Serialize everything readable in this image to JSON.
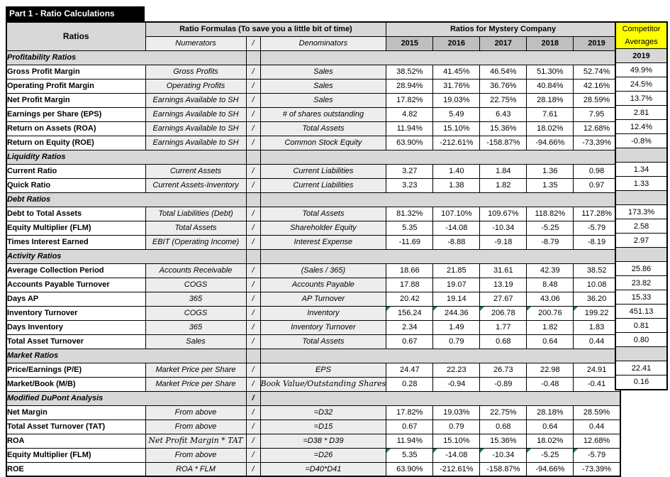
{
  "title": "Part 1 - Ratio Calculations",
  "header": {
    "ratios_label": "Ratios",
    "formulas_label": "Ratio Formulas (To save you a little bit of time)",
    "numerators_label": "Numerators",
    "slash": "/",
    "denominators_label": "Denominators",
    "company_label": "Ratios for Mystery Company",
    "years": [
      "2015",
      "2016",
      "2017",
      "2018",
      "2019"
    ]
  },
  "competitor": {
    "title_line1": "Competitor",
    "title_line2": "Averages",
    "year": "2019"
  },
  "colors": {
    "accent_green": "#00A551",
    "header_gray": "#D8D8D8",
    "year_gray": "#BFBFBF",
    "formula_bg": "#EDEDED",
    "highlight_yellow": "#FFFF00",
    "highlight_red": "#FF0000",
    "comment_triangle_green": "#1e8449"
  },
  "sections": [
    {
      "label": "Profitability Ratios",
      "slash": "",
      "comp": "year",
      "rows": [
        {
          "name": "Gross Profit Margin",
          "num": "Gross Profits",
          "den": "Sales",
          "values": [
            "38.52%",
            "41.45%",
            "46.54%",
            "51.30%",
            "52.74%"
          ],
          "comp": "49.9%"
        },
        {
          "name": "Operating Profit Margin",
          "num": "Operating Profits",
          "den": "Sales",
          "values": [
            "28.94%",
            "31.76%",
            "36.76%",
            "40.84%",
            "42.16%"
          ],
          "comp": "24.5%"
        },
        {
          "name": "Net Profit Margin",
          "num": "Earnings Available to SH",
          "den": "Sales",
          "values": [
            "17.82%",
            "19.03%",
            "22.75%",
            "28.18%",
            "28.59%"
          ],
          "comp": "13.7%"
        },
        {
          "name": "Earnings per Share (EPS)",
          "num": "Earnings Available to SH",
          "den": "# of shares outstanding",
          "values": [
            "4.82",
            "5.49",
            "6.43",
            "7.61",
            "7.95"
          ],
          "comp": "2.81"
        },
        {
          "name": "Return on Assets (ROA)",
          "num": "Earnings Available to SH",
          "den": "Total Assets",
          "values": [
            "11.94%",
            "15.10%",
            "15.36%",
            "18.02%",
            "12.68%"
          ],
          "comp": "12.4%"
        },
        {
          "name": "Return on Equity (ROE)",
          "num": "Earnings Available to SH",
          "den": "Common Stock Equity",
          "values": [
            "63.90%",
            "-212.61%",
            "-158.87%",
            "-94.66%",
            "-73.39%"
          ],
          "comp": "-0.8%"
        }
      ]
    },
    {
      "label": "Liquidity Ratios",
      "slash": "",
      "comp": "gray",
      "rows": [
        {
          "name": "Current Ratio",
          "num": "Current Assets",
          "den": "Current Liabilities",
          "values": [
            "3.27",
            "1.40",
            "1.84",
            "1.36",
            "0.98"
          ],
          "comp": "1.34"
        },
        {
          "name": "Quick Ratio",
          "num": "Current Assets-Inventory",
          "den": "Current Liabilities",
          "values": [
            "3.23",
            "1.38",
            "1.82",
            "1.35",
            "0.97"
          ],
          "comp": "1.33"
        }
      ]
    },
    {
      "label": "Debt Ratios",
      "slash": "",
      "comp": "gray",
      "rows": [
        {
          "name": "Debt to Total Assets",
          "num": "Total Liabilities (Debt)",
          "den": "Total Assets",
          "values": [
            "81.32%",
            "107.10%",
            "109.67%",
            "118.82%",
            "117.28%"
          ],
          "comp": "173.3%"
        },
        {
          "name": "Equity Multiplier (FLM)",
          "num": "Total Assets",
          "den": "Shareholder Equity",
          "values": [
            "5.35",
            "-14.08",
            "-10.34",
            "-5.25",
            "-5.79"
          ],
          "comp": "2.58"
        },
        {
          "name": "Times Interest Earned",
          "num": "EBIT (Operating Income)",
          "den": "Interest Expense",
          "values": [
            "-11.69",
            "-8.88",
            "-9.18",
            "-8.79",
            "-8.19"
          ],
          "comp": "2.97"
        }
      ]
    },
    {
      "label": "Activity Ratios",
      "slash": "",
      "comp": "gray",
      "rows": [
        {
          "name": "Average Collection Period",
          "num": "Accounts Receivable",
          "den": "(Sales / 365)",
          "values": [
            "18.66",
            "21.85",
            "31.61",
            "42.39",
            "38.52"
          ],
          "comp": "25.86"
        },
        {
          "name": "Accounts Payable Turnover",
          "num": "COGS",
          "den": "Accounts Payable",
          "values": [
            "17.88",
            "19.07",
            "13.19",
            "8.48",
            "10.08"
          ],
          "comp": "23.82"
        },
        {
          "name": "Days AP",
          "num": "365",
          "den": "AP Turnover",
          "values": [
            "20.42",
            "19.14",
            "27.67",
            "43.06",
            "36.20"
          ],
          "comp": "15.33"
        },
        {
          "name": "Inventory Turnover",
          "num": "COGS",
          "den": "Inventory",
          "tri": true,
          "values": [
            "156.24",
            "244.36",
            "206.78",
            "200.76",
            "199.22"
          ],
          "comp": "451.13"
        },
        {
          "name": "Days Inventory",
          "num": "365",
          "den": "Inventory Turnover",
          "values": [
            "2.34",
            "1.49",
            "1.77",
            "1.82",
            "1.83"
          ],
          "comp": "0.81"
        },
        {
          "name": "Total Asset Turnover",
          "num": "Sales",
          "den": "Total Assets",
          "values": [
            "0.67",
            "0.79",
            "0.68",
            "0.64",
            "0.44"
          ],
          "comp": "0.80"
        }
      ]
    },
    {
      "label": "Market Ratios",
      "slash": "",
      "comp": "gray",
      "rows": [
        {
          "name": "Price/Earnings (P/E)",
          "num": "Market Price per Share",
          "den": "EPS",
          "values": [
            "24.47",
            "22.23",
            "26.73",
            "22.98",
            "24.91"
          ],
          "comp": "22.41"
        },
        {
          "name": "Market/Book (M/B)",
          "num": "Market Price per Share",
          "den": "Book Value/Outstanding Shares",
          "den_script": true,
          "den_clip": true,
          "values": [
            "0.28",
            "-0.94",
            "-0.89",
            "-0.48",
            "-0.41"
          ],
          "comp": "0.16"
        }
      ]
    },
    {
      "label": "Modified DuPont Analysis",
      "slash": "/",
      "comp": "none",
      "rows": [
        {
          "name": "Net Margin",
          "num": "From above",
          "den": "=D32",
          "values": [
            "17.82%",
            "19.03%",
            "22.75%",
            "28.18%",
            "28.59%"
          ],
          "comp": null
        },
        {
          "name": "Total Asset Turnover (TAT)",
          "num": "From above",
          "den": "=D15",
          "values": [
            "0.67",
            "0.79",
            "0.68",
            "0.64",
            "0.44"
          ],
          "comp": null
        },
        {
          "name": "ROA",
          "num": "Net Profit Margin * TAT",
          "num_script": true,
          "den": "=D38 * D39",
          "values": [
            "11.94%",
            "15.10%",
            "15.36%",
            "18.02%",
            "12.68%"
          ],
          "comp": null
        },
        {
          "name": "Equity Multiplier (FLM)",
          "num": "From above",
          "den": "=D26",
          "tri": true,
          "values": [
            "5.35",
            "-14.08",
            "-10.34",
            "-5.25",
            "-5.79"
          ],
          "comp": null
        },
        {
          "name": "ROE",
          "num": "ROA * FLM",
          "den": "=D40*D41",
          "values": [
            "63.90%",
            "-212.61%",
            "-158.87%",
            "-94.66%",
            "-73.39%"
          ],
          "comp": null
        }
      ]
    }
  ]
}
